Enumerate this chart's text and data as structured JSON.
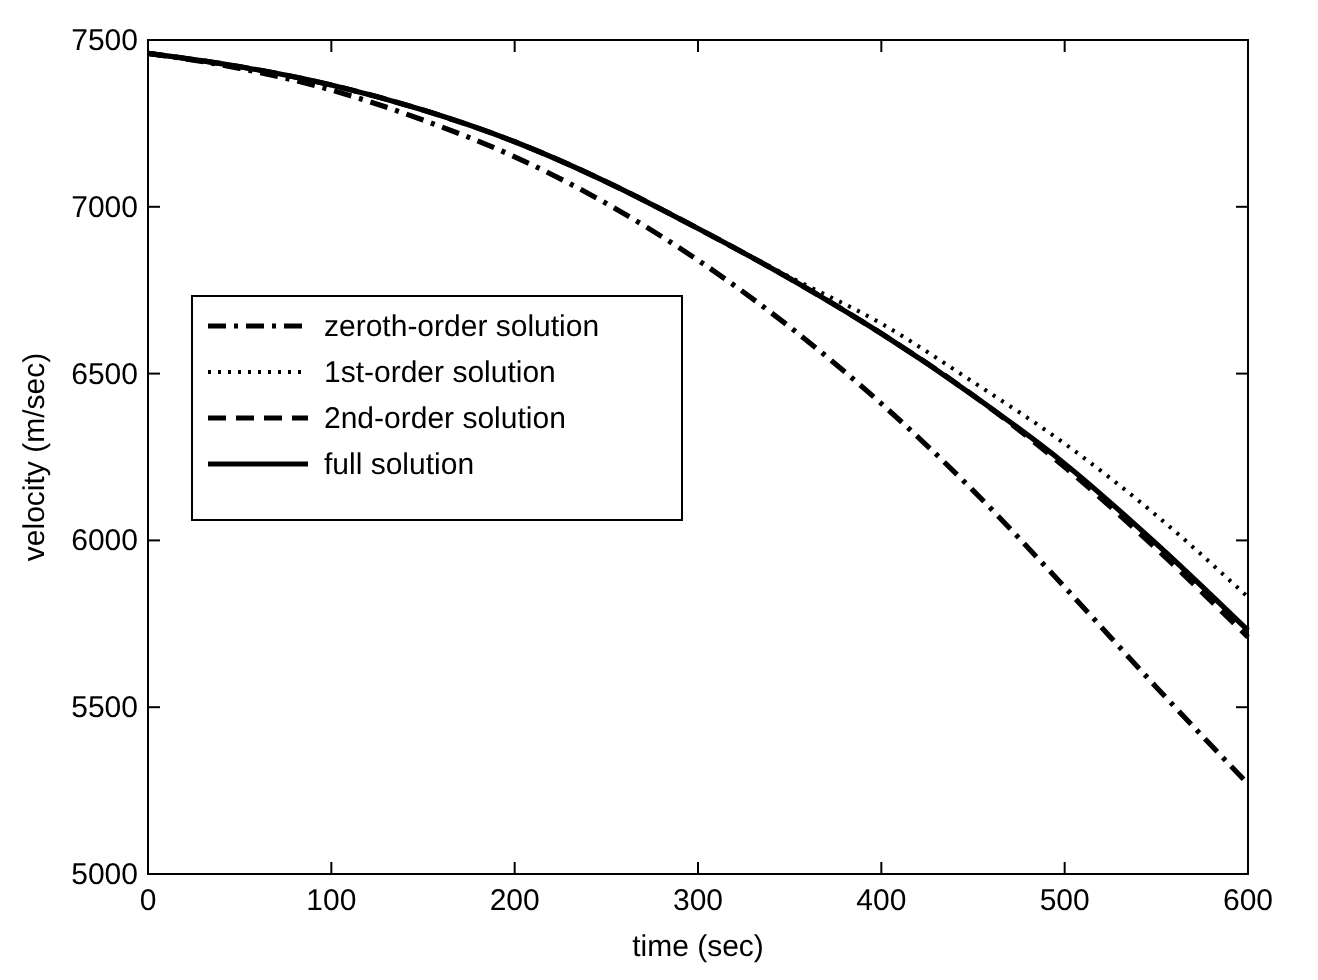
{
  "chart_data": {
    "type": "line",
    "xlabel": "time (sec)",
    "ylabel": "velocity (m/sec)",
    "x": [
      0,
      50,
      100,
      150,
      200,
      250,
      300,
      350,
      400,
      450,
      500,
      550,
      600
    ],
    "xlim": [
      0,
      600
    ],
    "xticks": [
      0,
      100,
      200,
      300,
      400,
      500,
      600
    ],
    "ylim": [
      5000,
      7500
    ],
    "yticks": [
      5000,
      5500,
      6000,
      6500,
      7000,
      7500
    ],
    "grid": false,
    "legend": "left",
    "marker": "none",
    "series": [
      {
        "name": "zeroth-order solution",
        "color": "#000000",
        "line_style": "dashdot",
        "values": [
          7460,
          7415,
          7350,
          7260,
          7150,
          7010,
          6840,
          6640,
          6410,
          6150,
          5860,
          5560,
          5270
        ]
      },
      {
        "name": "1st-order solution",
        "color": "#000000",
        "line_style": "dotted",
        "values": [
          7460,
          7420,
          7365,
          7290,
          7195,
          7075,
          6935,
          6790,
          6650,
          6475,
          6290,
          6075,
          5830
        ]
      },
      {
        "name": "2nd-order solution",
        "color": "#000000",
        "line_style": "dashed",
        "values": [
          7460,
          7420,
          7365,
          7290,
          7195,
          7075,
          6935,
          6785,
          6620,
          6435,
          6220,
          5975,
          5710
        ]
      },
      {
        "name": "full solution",
        "color": "#000000",
        "line_style": "solid",
        "values": [
          7460,
          7420,
          7365,
          7290,
          7195,
          7075,
          6935,
          6785,
          6620,
          6435,
          6230,
          5990,
          5730
        ]
      }
    ]
  }
}
